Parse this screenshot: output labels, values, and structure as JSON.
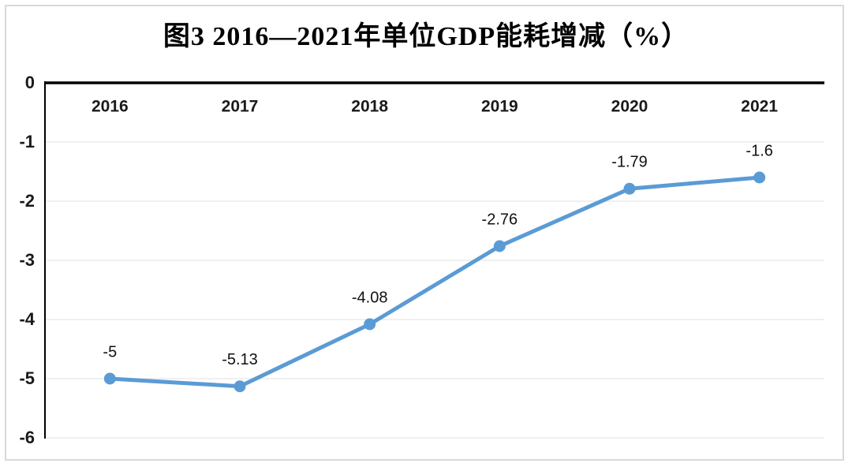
{
  "chart_data": {
    "type": "line",
    "title": "图3 2016—2021年单位GDP能耗增减（%）",
    "categories": [
      "2016",
      "2017",
      "2018",
      "2019",
      "2020",
      "2021"
    ],
    "values": [
      -5,
      -5.13,
      -4.08,
      -2.76,
      -1.79,
      -1.6
    ],
    "data_labels": [
      "-5",
      "-5.13",
      "-4.08",
      "-2.76",
      "-1.79",
      "-1.6"
    ],
    "y_ticks": [
      "0",
      "-1",
      "-2",
      "-3",
      "-4",
      "-5",
      "-6"
    ],
    "y_tick_values": [
      0,
      -1,
      -2,
      -3,
      -4,
      -5,
      -6
    ],
    "ylim": [
      -6,
      0
    ],
    "xlabel": "",
    "ylabel": "",
    "legend": "none",
    "grid": "horizontal",
    "line_color": "#5B9BD5",
    "gridline_color": "#ececec",
    "axis_color": "#000000",
    "frame_color": "#d9d9d9",
    "label_color": "#111111"
  }
}
